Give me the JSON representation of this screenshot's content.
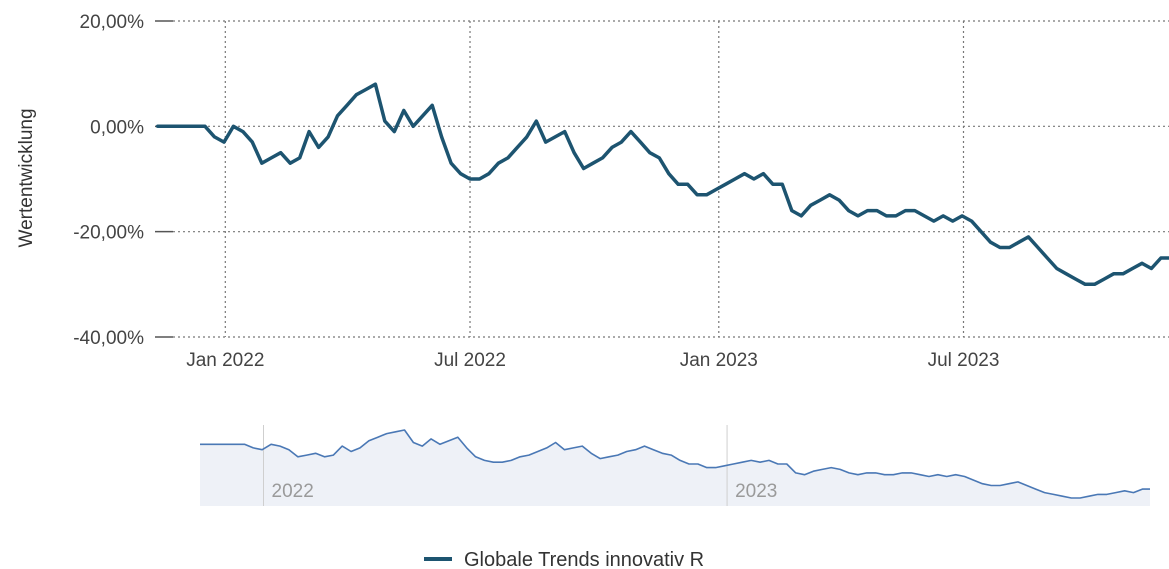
{
  "chart_data": {
    "type": "line",
    "ylabel": "Wertentwicklung",
    "ylim": [
      -40,
      20
    ],
    "y_ticks": [
      {
        "value": 20,
        "label": "20,00%"
      },
      {
        "value": 0,
        "label": "0,00%"
      },
      {
        "value": -20,
        "label": "-20,00%"
      },
      {
        "value": -40,
        "label": "-40,00%"
      }
    ],
    "x_ticks": [
      {
        "date": "2022-01-01",
        "label": "Jan 2022"
      },
      {
        "date": "2022-07-01",
        "label": "Jul 2022"
      },
      {
        "date": "2023-01-01",
        "label": "Jan 2023"
      },
      {
        "date": "2023-07-01",
        "label": "Jul 2023"
      }
    ],
    "xlim": [
      "2021-11-10",
      "2023-11-30"
    ],
    "grid": true,
    "line_color": "#1d5470",
    "navigator": {
      "labels": [
        {
          "date": "2022-01-01",
          "label": "2022"
        },
        {
          "date": "2023-01-01",
          "label": "2023"
        }
      ],
      "line_color": "#4a78b5",
      "fill_color": "#eef1f7"
    },
    "legend_position": "bottom-center",
    "series": [
      {
        "name": "Globale Trends innovativ R",
        "x": [
          "2021-11-12",
          "2021-11-26",
          "2021-12-10",
          "2021-12-17",
          "2021-12-24",
          "2021-12-31",
          "2022-01-07",
          "2022-01-14",
          "2022-01-21",
          "2022-01-28",
          "2022-02-04",
          "2022-02-11",
          "2022-02-18",
          "2022-02-25",
          "2022-03-04",
          "2022-03-11",
          "2022-03-18",
          "2022-03-25",
          "2022-04-01",
          "2022-04-08",
          "2022-04-15",
          "2022-04-22",
          "2022-04-29",
          "2022-05-06",
          "2022-05-13",
          "2022-05-20",
          "2022-05-27",
          "2022-06-03",
          "2022-06-10",
          "2022-06-17",
          "2022-06-24",
          "2022-07-01",
          "2022-07-08",
          "2022-07-15",
          "2022-07-22",
          "2022-07-29",
          "2022-08-05",
          "2022-08-12",
          "2022-08-19",
          "2022-08-26",
          "2022-09-02",
          "2022-09-09",
          "2022-09-16",
          "2022-09-23",
          "2022-09-30",
          "2022-10-07",
          "2022-10-14",
          "2022-10-21",
          "2022-10-28",
          "2022-11-04",
          "2022-11-11",
          "2022-11-18",
          "2022-11-25",
          "2022-12-02",
          "2022-12-09",
          "2022-12-16",
          "2022-12-23",
          "2022-12-30",
          "2023-01-06",
          "2023-01-13",
          "2023-01-20",
          "2023-01-27",
          "2023-02-03",
          "2023-02-10",
          "2023-02-17",
          "2023-02-24",
          "2023-03-03",
          "2023-03-10",
          "2023-03-17",
          "2023-03-24",
          "2023-03-31",
          "2023-04-07",
          "2023-04-14",
          "2023-04-21",
          "2023-04-28",
          "2023-05-05",
          "2023-05-12",
          "2023-05-19",
          "2023-05-26",
          "2023-06-02",
          "2023-06-09",
          "2023-06-16",
          "2023-06-23",
          "2023-06-30",
          "2023-07-07",
          "2023-07-14",
          "2023-07-21",
          "2023-07-28",
          "2023-08-04",
          "2023-08-11",
          "2023-08-18",
          "2023-08-25",
          "2023-09-01",
          "2023-09-08",
          "2023-09-15",
          "2023-09-22",
          "2023-09-29",
          "2023-10-06",
          "2023-10-13",
          "2023-10-20",
          "2023-10-27",
          "2023-11-03",
          "2023-11-10",
          "2023-11-17",
          "2023-11-24",
          "2023-11-30"
        ],
        "values": [
          0,
          0,
          0,
          0,
          -2,
          -3,
          0,
          -1,
          -3,
          -7,
          -6,
          -5,
          -7,
          -6,
          -1,
          -4,
          -2,
          2,
          4,
          6,
          7,
          8,
          1,
          -1,
          3,
          0,
          2,
          4,
          -2,
          -7,
          -9,
          -10,
          -10,
          -9,
          -7,
          -6,
          -4,
          -2,
          1,
          -3,
          -2,
          -1,
          -5,
          -8,
          -7,
          -6,
          -4,
          -3,
          -1,
          -3,
          -5,
          -6,
          -9,
          -11,
          -11,
          -13,
          -13,
          -12,
          -11,
          -10,
          -9,
          -10,
          -9,
          -11,
          -11,
          -16,
          -17,
          -15,
          -14,
          -13,
          -14,
          -16,
          -17,
          -16,
          -16,
          -17,
          -17,
          -16,
          -16,
          -17,
          -18,
          -17,
          -18,
          -17,
          -18,
          -20,
          -22,
          -23,
          -23,
          -22,
          -21,
          -23,
          -25,
          -27,
          -28,
          -29,
          -30,
          -30,
          -29,
          -28,
          -28,
          -27,
          -26,
          -27,
          -25,
          -25
        ]
      }
    ]
  }
}
